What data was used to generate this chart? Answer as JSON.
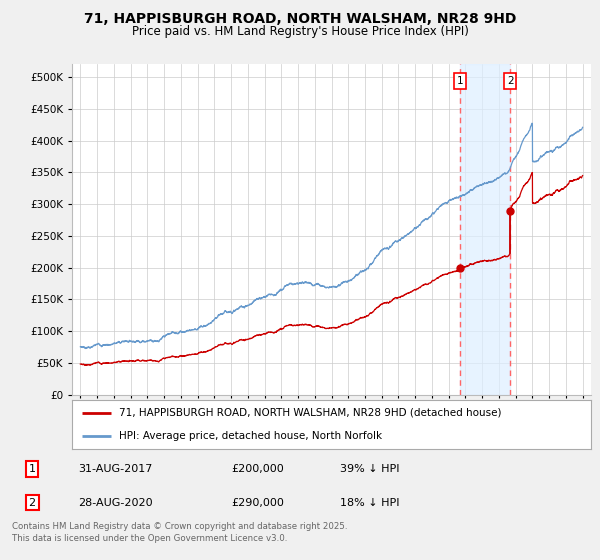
{
  "title": "71, HAPPISBURGH ROAD, NORTH WALSHAM, NR28 9HD",
  "subtitle": "Price paid vs. HM Land Registry's House Price Index (HPI)",
  "background_color": "#f0f0f0",
  "plot_bg_color": "#ffffff",
  "hpi_color": "#6699cc",
  "price_color": "#cc0000",
  "dashed_line_color": "#ff6666",
  "shade_color": "#ddeeff",
  "ylim": [
    0,
    520000
  ],
  "yticks": [
    0,
    50000,
    100000,
    150000,
    200000,
    250000,
    300000,
    350000,
    400000,
    450000,
    500000
  ],
  "legend_labels": [
    "71, HAPPISBURGH ROAD, NORTH WALSHAM, NR28 9HD (detached house)",
    "HPI: Average price, detached house, North Norfolk"
  ],
  "sale1_year": 2017.67,
  "sale1_price": 200000,
  "sale2_year": 2020.67,
  "sale2_price": 290000,
  "annotation1": {
    "label": "1",
    "date": "31-AUG-2017",
    "price": "£200,000",
    "hpi_pct": "39% ↓ HPI"
  },
  "annotation2": {
    "label": "2",
    "date": "28-AUG-2020",
    "price": "£290,000",
    "hpi_pct": "18% ↓ HPI"
  },
  "footer": "Contains HM Land Registry data © Crown copyright and database right 2025.\nThis data is licensed under the Open Government Licence v3.0.",
  "start_year": 1995,
  "end_year": 2025
}
